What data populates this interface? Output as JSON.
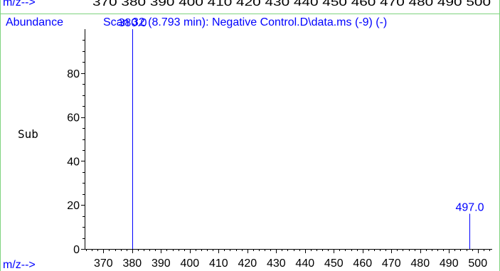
{
  "header": {
    "prev_axis_label": "m/z-->",
    "prev_ticks": "370 380 390 400 410 420 430 440 450 460 470 480 490 500",
    "abundance_label": "Abundance",
    "scan_title": "Scan 32 (8.793 min): Negative Control.D\\data.ms (-9) (-)"
  },
  "side_label": "Sub",
  "colors": {
    "accent": "#0000ff",
    "frame": "#7fd37f",
    "axis": "#000000"
  },
  "chart_data": {
    "type": "bar",
    "title": "Scan 32 (8.793 min): Negative Control.D\\data.ms (-9) (-)",
    "xlabel": "m/z-->",
    "ylabel": "Abundance",
    "xlim": [
      363.5,
      505
    ],
    "ylim": [
      0,
      100
    ],
    "x_ticks": [
      370,
      380,
      390,
      400,
      410,
      420,
      430,
      440,
      450,
      460,
      470,
      480,
      490,
      500
    ],
    "y_ticks": [
      0,
      20,
      40,
      60,
      80
    ],
    "grid": false,
    "peaks": [
      {
        "mz": 380.0,
        "abundance": 100,
        "label": "380.0"
      },
      {
        "mz": 497.0,
        "abundance": 16,
        "label": "497.0"
      }
    ]
  }
}
